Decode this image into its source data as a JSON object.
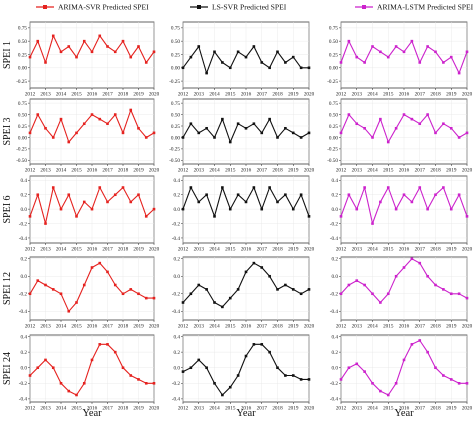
{
  "legend": {
    "items": [
      {
        "label": "ARIMA-SVR Predicted SPEI",
        "color": "#e5221f",
        "marker": "diamond"
      },
      {
        "label": "LS-SVR Predicted SPEI",
        "color": "#111111",
        "marker": "square"
      },
      {
        "label": "ARIMA-LSTM Predicted SPEI",
        "color": "#cc22cc",
        "marker": "star"
      }
    ]
  },
  "observed_color": "#3d9ad8",
  "x_axis": {
    "label": "Year",
    "ticks": [
      "2012",
      "2013",
      "2014",
      "2015",
      "2016",
      "2017",
      "2018",
      "2019",
      "2020"
    ]
  },
  "rows": [
    {
      "label": "SPEI 1",
      "yticks": [
        "0.75",
        "0.50",
        "0.25",
        "0.00",
        "-0.25"
      ],
      "ylim": [
        -0.38,
        0.86
      ]
    },
    {
      "label": "SPEI 3",
      "yticks": [
        "0.75",
        "0.50",
        "0.25",
        "0.00",
        "-0.25",
        "-0.50"
      ],
      "ylim": [
        -0.58,
        0.84
      ]
    },
    {
      "label": "SPEI 6",
      "yticks": [
        "0.4",
        "0.2",
        "0.0",
        "-0.2",
        "-0.4"
      ],
      "ylim": [
        -0.47,
        0.46
      ]
    },
    {
      "label": "SPEI 12",
      "yticks": [
        "0.2",
        "0.0",
        "-0.2",
        "-0.4"
      ],
      "ylim": [
        -0.5,
        0.22
      ]
    },
    {
      "label": "SPEI 24",
      "yticks": [
        "0.4",
        "0.2",
        "0.0",
        "-0.2",
        "-0.4"
      ],
      "ylim": [
        -0.44,
        0.42
      ]
    }
  ],
  "chart_data": {
    "type": "line",
    "x": [
      "2012",
      "2012.5",
      "2013",
      "2013.5",
      "2014",
      "2014.5",
      "2015",
      "2015.5",
      "2016",
      "2016.5",
      "2017",
      "2017.5",
      "2018",
      "2018.5",
      "2019",
      "2019.5",
      "2020"
    ],
    "panels": [
      {
        "row": "SPEI 1",
        "model": "ARIMA-SVR Predicted SPEI",
        "series": [
          {
            "name": "ARIMA-SVR Predicted SPEI",
            "values": [
              0.2,
              0.5,
              0.1,
              0.6,
              0.3,
              0.4,
              0.2,
              0.5,
              0.3,
              0.6,
              0.4,
              0.3,
              0.5,
              0.2,
              0.4,
              0.1,
              0.3
            ]
          }
        ]
      },
      {
        "row": "SPEI 1",
        "model": "LS-SVR Predicted SPEI",
        "series": [
          {
            "name": "LS-SVR Predicted SPEI",
            "values": [
              0.0,
              0.2,
              0.4,
              -0.1,
              0.3,
              0.1,
              0.0,
              0.3,
              0.2,
              0.4,
              0.1,
              0.0,
              0.3,
              0.1,
              0.2,
              0.0,
              0.0
            ]
          }
        ]
      },
      {
        "row": "SPEI 1",
        "model": "ARIMA-LSTM Predicted SPEI",
        "series": [
          {
            "name": "ARIMA-LSTM Predicted SPEI",
            "values": [
              0.1,
              0.5,
              0.2,
              0.1,
              0.4,
              0.3,
              0.2,
              0.4,
              0.3,
              0.5,
              0.1,
              0.4,
              0.3,
              0.1,
              0.2,
              -0.1,
              0.3
            ]
          }
        ]
      },
      {
        "row": "SPEI 3",
        "model": "ARIMA-SVR Predicted SPEI",
        "series": [
          {
            "name": "ARIMA-SVR Predicted SPEI",
            "values": [
              0.1,
              0.5,
              0.2,
              0.0,
              0.4,
              -0.1,
              0.1,
              0.3,
              0.5,
              0.4,
              0.3,
              0.5,
              0.1,
              0.6,
              0.2,
              0.0,
              0.1
            ]
          }
        ]
      },
      {
        "row": "SPEI 3",
        "model": "LS-SVR Predicted SPEI",
        "series": [
          {
            "name": "LS-SVR Predicted SPEI",
            "values": [
              0.0,
              0.3,
              0.1,
              0.2,
              0.0,
              0.4,
              -0.1,
              0.3,
              0.2,
              0.3,
              0.1,
              0.4,
              0.0,
              0.2,
              0.1,
              0.0,
              0.1
            ]
          }
        ]
      },
      {
        "row": "SPEI 3",
        "model": "ARIMA-LSTM Predicted SPEI",
        "series": [
          {
            "name": "ARIMA-LSTM Predicted SPEI",
            "values": [
              0.1,
              0.5,
              0.3,
              0.2,
              0.0,
              0.4,
              -0.1,
              0.2,
              0.5,
              0.4,
              0.3,
              0.5,
              0.1,
              0.3,
              0.2,
              0.0,
              0.1
            ]
          }
        ]
      },
      {
        "row": "SPEI 6",
        "model": "ARIMA-SVR Predicted SPEI",
        "series": [
          {
            "name": "ARIMA-SVR Predicted SPEI",
            "values": [
              -0.1,
              0.2,
              -0.2,
              0.3,
              0.0,
              0.2,
              -0.1,
              0.1,
              0.0,
              0.3,
              0.1,
              0.2,
              0.3,
              0.1,
              0.2,
              -0.1,
              0.0
            ]
          }
        ]
      },
      {
        "row": "SPEI 6",
        "model": "LS-SVR Predicted SPEI",
        "series": [
          {
            "name": "LS-SVR Predicted SPEI",
            "values": [
              0.0,
              0.3,
              0.1,
              0.2,
              -0.1,
              0.3,
              0.0,
              0.2,
              0.1,
              0.3,
              0.0,
              0.3,
              0.1,
              0.2,
              0.0,
              0.2,
              -0.1
            ]
          }
        ]
      },
      {
        "row": "SPEI 6",
        "model": "ARIMA-LSTM Predicted SPEI",
        "series": [
          {
            "name": "ARIMA-LSTM Predicted SPEI",
            "values": [
              -0.1,
              0.2,
              0.0,
              0.3,
              -0.2,
              0.1,
              0.3,
              0.0,
              0.2,
              0.1,
              0.3,
              0.0,
              0.2,
              0.3,
              0.0,
              0.2,
              -0.1
            ]
          }
        ]
      },
      {
        "row": "SPEI 12",
        "model": "ARIMA-SVR Predicted SPEI",
        "series": [
          {
            "name": "ARIMA-SVR Predicted SPEI",
            "values": [
              -0.2,
              -0.05,
              -0.1,
              -0.15,
              -0.2,
              -0.4,
              -0.3,
              -0.1,
              0.1,
              0.15,
              0.05,
              -0.1,
              -0.2,
              -0.15,
              -0.2,
              -0.25,
              -0.25
            ]
          }
        ]
      },
      {
        "row": "SPEI 12",
        "model": "LS-SVR Predicted SPEI",
        "series": [
          {
            "name": "LS-SVR Predicted SPEI",
            "values": [
              -0.3,
              -0.2,
              -0.1,
              -0.15,
              -0.3,
              -0.35,
              -0.25,
              -0.15,
              0.05,
              0.15,
              0.1,
              0.0,
              -0.15,
              -0.1,
              -0.15,
              -0.2,
              -0.15
            ]
          }
        ]
      },
      {
        "row": "SPEI 12",
        "model": "ARIMA-LSTM Predicted SPEI",
        "series": [
          {
            "name": "ARIMA-LSTM Predicted SPEI",
            "values": [
              -0.2,
              -0.1,
              -0.05,
              -0.1,
              -0.2,
              -0.3,
              -0.2,
              0.0,
              0.1,
              0.2,
              0.15,
              0.0,
              -0.1,
              -0.15,
              -0.2,
              -0.2,
              -0.25
            ]
          }
        ]
      },
      {
        "row": "SPEI 24",
        "model": "ARIMA-SVR Predicted SPEI",
        "series": [
          {
            "name": "ARIMA-SVR Predicted SPEI",
            "values": [
              -0.1,
              0.0,
              0.1,
              0.0,
              -0.2,
              -0.3,
              -0.35,
              -0.2,
              0.1,
              0.3,
              0.3,
              0.2,
              0.0,
              -0.1,
              -0.15,
              -0.2,
              -0.2
            ]
          }
        ]
      },
      {
        "row": "SPEI 24",
        "model": "LS-SVR Predicted SPEI",
        "series": [
          {
            "name": "LS-SVR Predicted SPEI",
            "values": [
              -0.05,
              0.0,
              0.1,
              0.0,
              -0.2,
              -0.35,
              -0.25,
              -0.1,
              0.15,
              0.3,
              0.3,
              0.2,
              0.0,
              -0.1,
              -0.1,
              -0.15,
              -0.15
            ]
          }
        ]
      },
      {
        "row": "SPEI 24",
        "model": "ARIMA-LSTM Predicted SPEI",
        "series": [
          {
            "name": "ARIMA-LSTM Predicted SPEI",
            "values": [
              -0.15,
              0.0,
              0.05,
              -0.05,
              -0.2,
              -0.3,
              -0.35,
              -0.2,
              0.1,
              0.3,
              0.35,
              0.2,
              0.0,
              -0.1,
              -0.15,
              -0.2,
              -0.2
            ]
          }
        ]
      }
    ]
  }
}
